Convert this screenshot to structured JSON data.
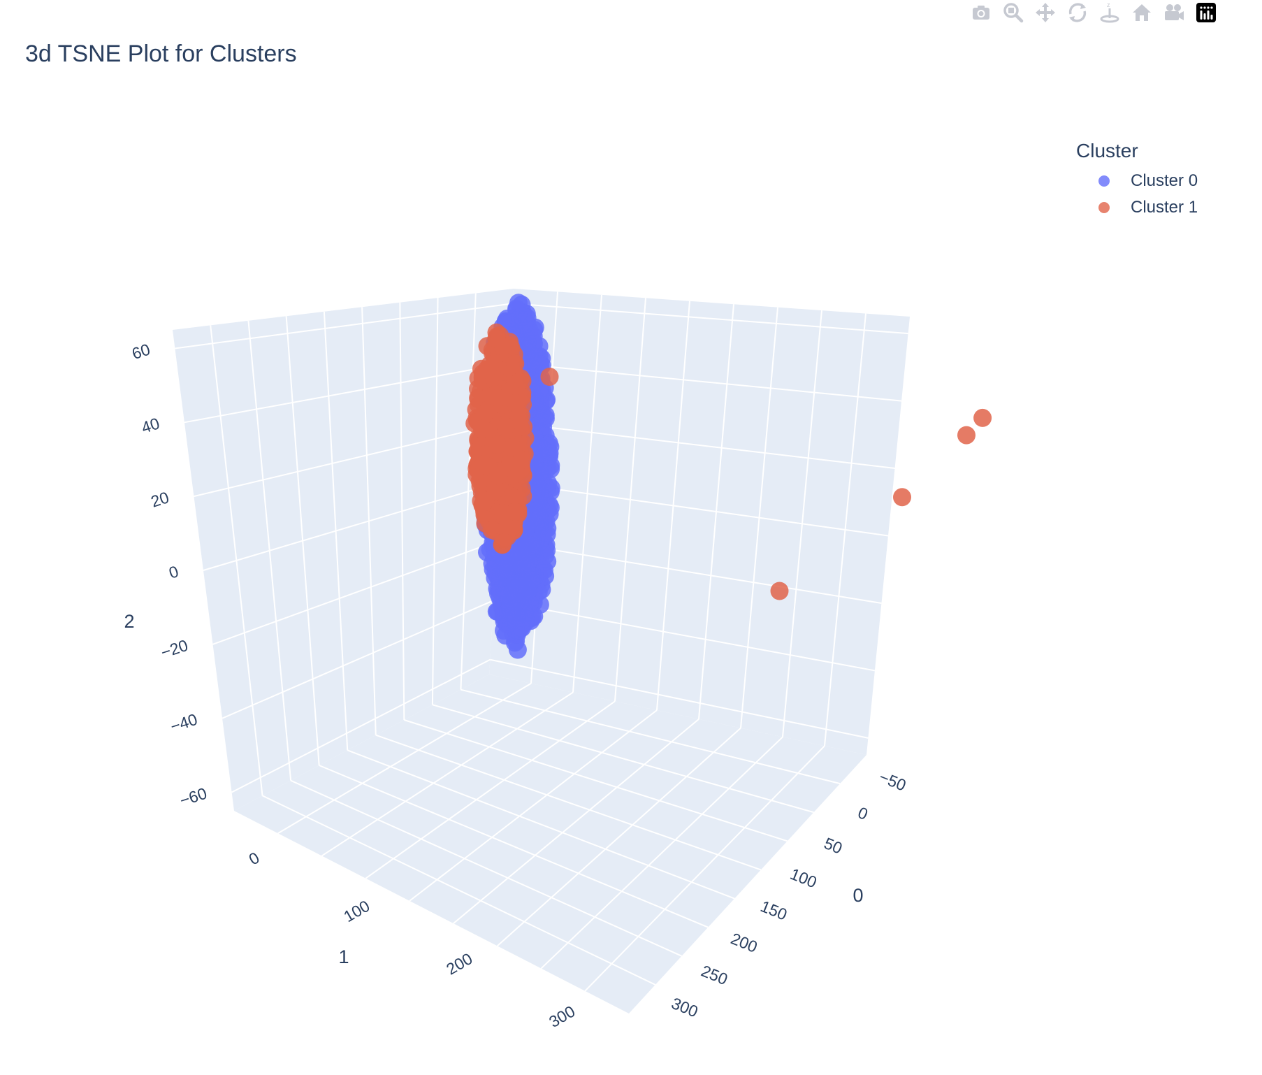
{
  "modebar": {
    "icons": [
      "camera-icon",
      "zoom-icon",
      "pan-icon",
      "orbit-rotation-icon",
      "turntable-rotation-icon",
      "reset-camera-icon",
      "camera-view-icon",
      "plotly-logo-icon"
    ]
  },
  "chart_data": {
    "type": "scatter",
    "dimensions": "3d",
    "title": "3d TSNE Plot for Clusters",
    "legend": {
      "title": "Cluster",
      "placement": "top-right"
    },
    "axes": {
      "x": {
        "title": "0",
        "ticks": [
          "−50",
          "0",
          "50",
          "100",
          "150",
          "200",
          "250",
          "300"
        ],
        "range": [
          -75,
          330
        ]
      },
      "y": {
        "title": "1",
        "ticks": [
          "0",
          "100",
          "200",
          "300"
        ],
        "range": [
          -30,
          360
        ]
      },
      "z": {
        "title": "2",
        "ticks": [
          "−60",
          "−40",
          "−20",
          "0",
          "20",
          "40",
          "60"
        ],
        "range": [
          -65,
          65
        ]
      }
    },
    "series": [
      {
        "name": "Cluster 0",
        "color": "#636efa",
        "description_points": "dense ellipsoid cloud centered near x=-30, y=-25, z=0, spanning z from about -55 to 60",
        "center": [
          -30,
          -25,
          0
        ],
        "spread": [
          18,
          22,
          58
        ]
      },
      {
        "name": "Cluster 1",
        "color": "#e1644a",
        "center": [
          -38,
          -20,
          12
        ],
        "spread": [
          14,
          10,
          36
        ],
        "outliers": [
          [
            175,
            -20,
            5
          ],
          [
            210,
            -15,
            28
          ],
          [
            218,
            -18,
            34
          ],
          [
            -10,
            -10,
            35
          ],
          [
            110,
            -20,
            -30
          ]
        ]
      }
    ]
  }
}
